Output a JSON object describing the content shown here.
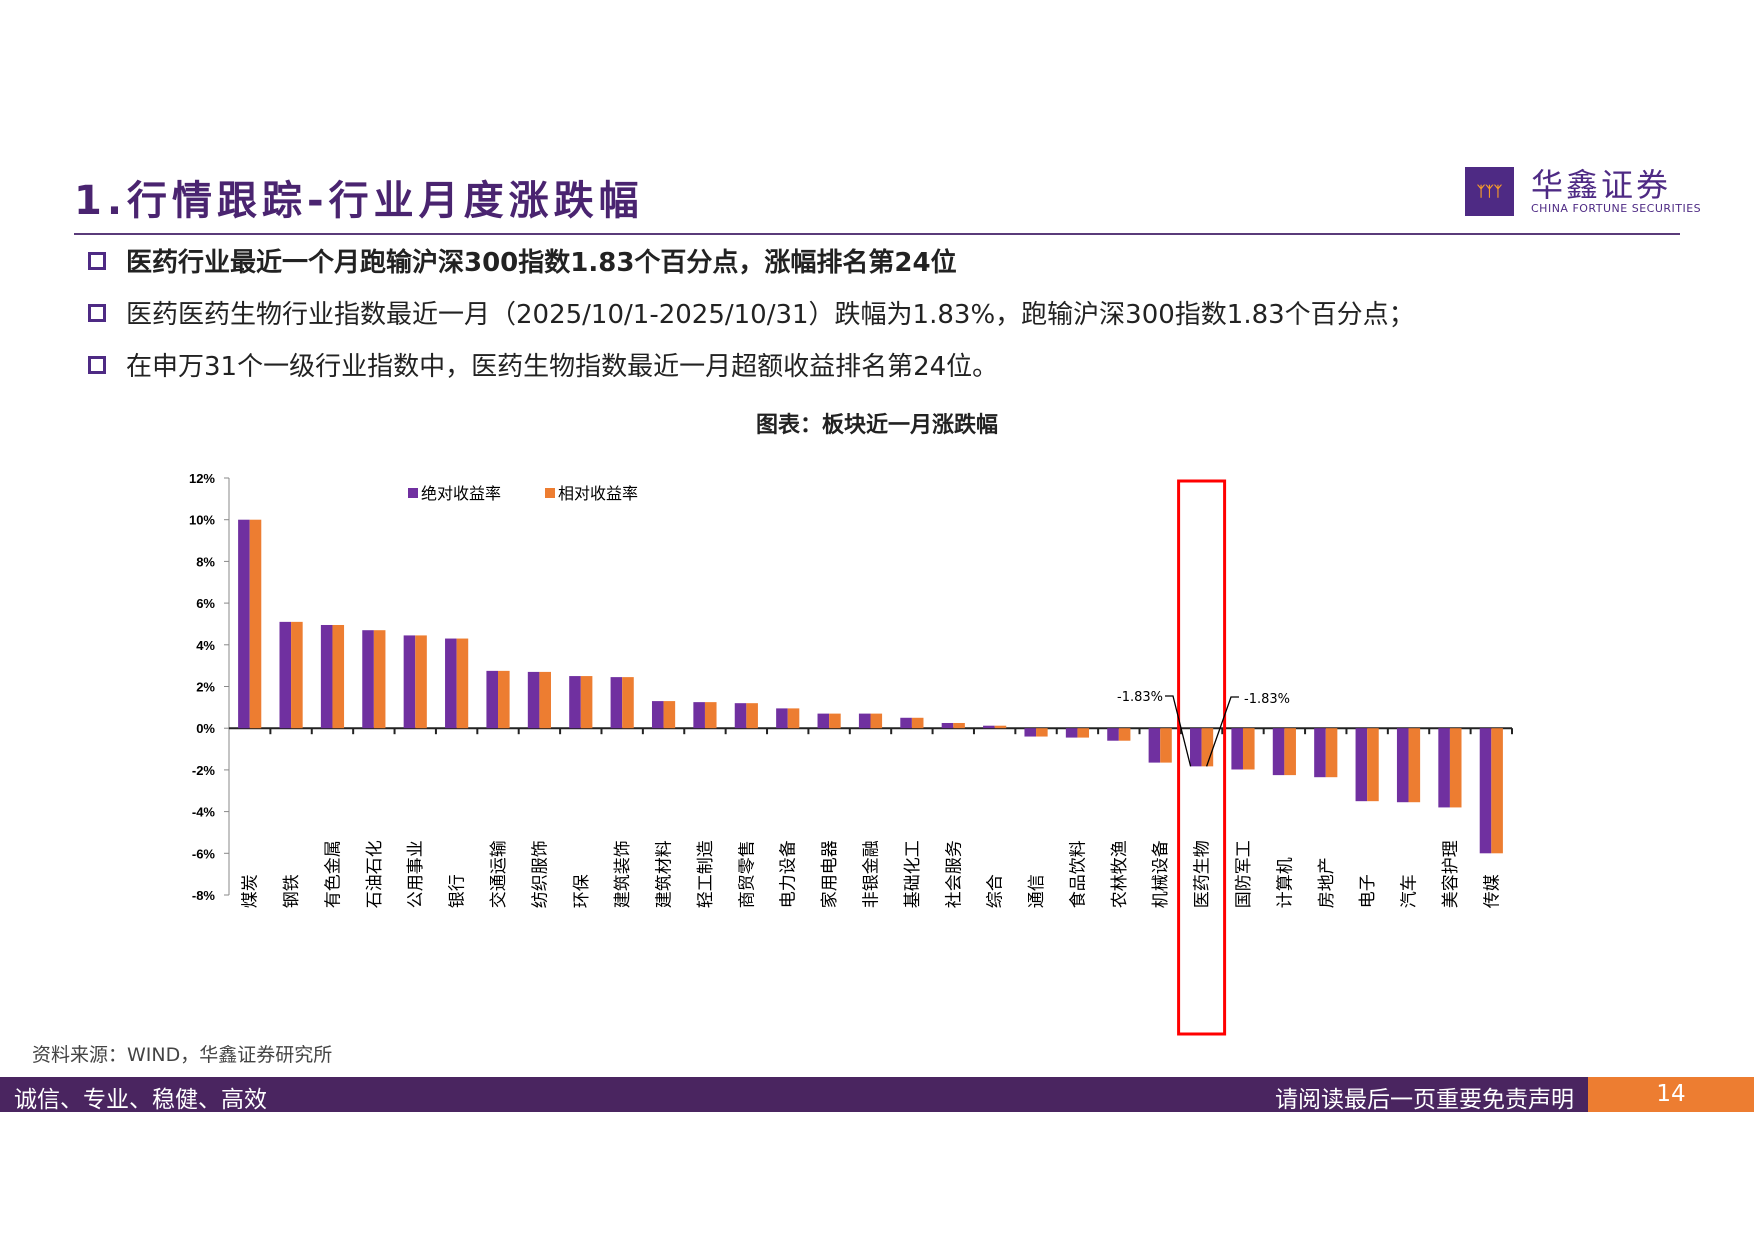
{
  "header": {
    "title": "1.行情跟踪-行业月度涨跌幅",
    "logo_cn": "华鑫证券",
    "logo_en": "CHINA FORTUNE SECURITIES"
  },
  "bullets": [
    "医药行业最近一个月跑输沪深300指数1.83个百分点，涨幅排名第24位",
    "医药医药生物行业指数最近一月（2025/10/1-2025/10/31）跌幅为1.83%，跑输沪深300指数1.83个百分点；",
    "在申万31个一级行业指数中，医药生物指数最近一月超额收益排名第24位。"
  ],
  "chart_title": "图表：板块近一月涨跌幅",
  "source": "资料来源：WIND，华鑫证券研究所",
  "footer": {
    "left": "诚信、专业、稳健、高效",
    "right": "请阅读最后一页重要免责声明",
    "page": "14"
  },
  "chart_data": {
    "type": "bar",
    "categories": [
      "煤炭",
      "钢铁",
      "有色金属",
      "石油石化",
      "公用事业",
      "银行",
      "交通运输",
      "纺织服饰",
      "环保",
      "建筑装饰",
      "建筑材料",
      "轻工制造",
      "商贸零售",
      "电力设备",
      "家用电器",
      "非银金融",
      "基础化工",
      "社会服务",
      "综合",
      "通信",
      "食品饮料",
      "农林牧渔",
      "机械设备",
      "医药生物",
      "国防军工",
      "计算机",
      "房地产",
      "电子",
      "汽车",
      "美容护理",
      "传媒"
    ],
    "series": [
      {
        "name": "绝对收益率",
        "color": "#7030a0",
        "values": [
          10.0,
          5.1,
          4.95,
          4.7,
          4.45,
          4.3,
          2.75,
          2.7,
          2.5,
          2.45,
          1.3,
          1.25,
          1.2,
          0.95,
          0.7,
          0.7,
          0.5,
          0.25,
          0.12,
          -0.4,
          -0.45,
          -0.6,
          -1.65,
          -1.83,
          -1.98,
          -2.25,
          -2.35,
          -3.5,
          -3.55,
          -3.8,
          -6.0
        ]
      },
      {
        "name": "相对收益率",
        "color": "#ed7d31",
        "values": [
          10.0,
          5.1,
          4.95,
          4.7,
          4.45,
          4.3,
          2.75,
          2.7,
          2.5,
          2.45,
          1.3,
          1.25,
          1.2,
          0.95,
          0.7,
          0.7,
          0.5,
          0.25,
          0.12,
          -0.4,
          -0.45,
          -0.6,
          -1.65,
          -1.83,
          -1.98,
          -2.25,
          -2.35,
          -3.5,
          -3.55,
          -3.8,
          -6.0
        ]
      }
    ],
    "ylim": [
      -8,
      12
    ],
    "yticks": [
      "12%",
      "10%",
      "8%",
      "6%",
      "4%",
      "2%",
      "0%",
      "-2%",
      "-4%",
      "-6%",
      "-8%"
    ],
    "annotations": [
      "-1.83%",
      "-1.83%"
    ],
    "highlight": "医药生物",
    "highlight_color": "#ff0000",
    "legend": "top-left"
  }
}
